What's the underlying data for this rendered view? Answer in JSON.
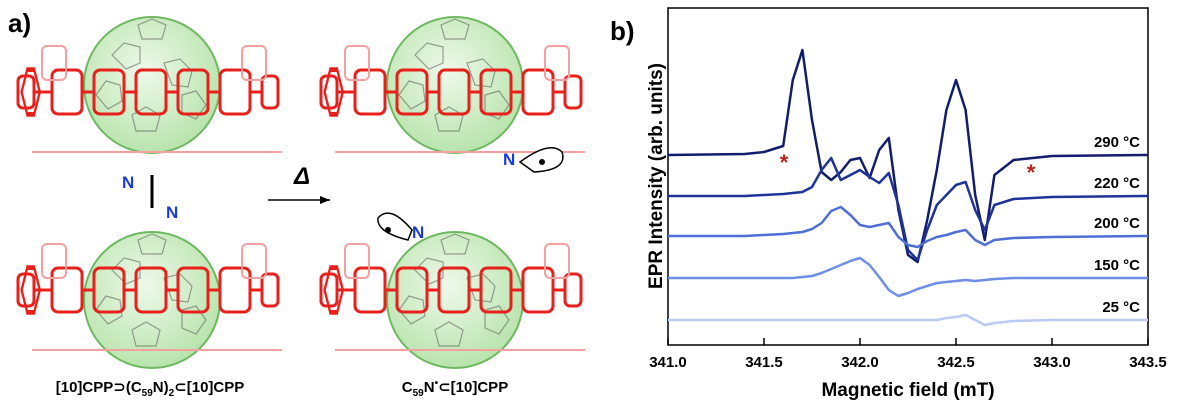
{
  "panel_a": {
    "label": "a)",
    "arrow_label": "Δ",
    "n_labels": [
      "N",
      "N",
      "N",
      "N"
    ],
    "left_caption": [
      "[10]CPP⊃(C",
      "59",
      "N)",
      "2",
      "⊂[10]CPP"
    ],
    "right_caption": [
      "C",
      "59",
      "N",
      "•",
      "⊂[10]CPP"
    ]
  },
  "chart_data": {
    "type": "line",
    "panel_label": "b)",
    "x_label": "Magnetic field (mT)",
    "y_label": "EPR Intensity (arb. units)",
    "x": [
      341.0,
      341.4,
      341.5,
      341.6,
      341.65,
      341.7,
      341.75,
      341.8,
      341.85,
      341.9,
      341.95,
      342.0,
      342.05,
      342.1,
      342.15,
      342.2,
      342.25,
      342.3,
      342.35,
      342.4,
      342.45,
      342.5,
      342.55,
      342.6,
      342.65,
      342.7,
      342.8,
      343.0,
      343.5
    ],
    "xlim": [
      341.0,
      343.5
    ],
    "xticks": [
      {
        "value": 341.0,
        "label": "341.0"
      },
      {
        "value": 341.5,
        "label": "341.5"
      },
      {
        "value": 342.0,
        "label": "342.0"
      },
      {
        "value": 342.5,
        "label": "342.5"
      },
      {
        "value": 343.0,
        "label": "343.0"
      },
      {
        "value": 343.5,
        "label": "343.5"
      }
    ],
    "ylim": [
      0,
      320
    ],
    "markers": [
      "*",
      "*"
    ],
    "series": [
      {
        "name": "290 °C",
        "color": "#121d6e",
        "values": [
          190,
          191,
          193,
          199,
          265,
          295,
          225,
          173,
          165,
          173,
          185,
          187,
          167,
          195,
          207,
          135,
          90,
          83,
          125,
          175,
          235,
          265,
          235,
          150,
          105,
          170,
          185,
          189,
          190
        ]
      },
      {
        "name": "220 °C",
        "color": "#1f3399",
        "values": [
          149,
          149,
          150,
          151,
          152,
          153,
          158,
          175,
          187,
          165,
          170,
          175,
          168,
          162,
          172,
          140,
          95,
          85,
          115,
          140,
          150,
          160,
          163,
          135,
          115,
          140,
          146,
          148,
          149
        ]
      },
      {
        "name": "200 °C",
        "color": "#4f6fd6",
        "values": [
          109,
          109,
          110,
          111,
          112,
          113,
          116,
          122,
          134,
          138,
          130,
          120,
          118,
          120,
          122,
          108,
          100,
          98,
          104,
          108,
          110,
          113,
          115,
          105,
          100,
          105,
          107,
          108,
          109
        ]
      },
      {
        "name": "150 °C",
        "color": "#6f8ee6",
        "values": [
          67,
          67,
          67,
          67,
          67,
          68,
          69,
          72,
          76,
          80,
          84,
          87,
          80,
          68,
          55,
          49,
          52,
          56,
          59,
          62,
          63,
          64,
          65,
          64,
          65,
          66,
          67,
          67,
          67
        ]
      },
      {
        "name": "25 °C",
        "color": "#bccbf4",
        "values": [
          25,
          25,
          25,
          25,
          25,
          25,
          25,
          25,
          25,
          25,
          25,
          25,
          25,
          25,
          25,
          25,
          25,
          25,
          25,
          25,
          27,
          28,
          30,
          25,
          20,
          22,
          24,
          25,
          25
        ]
      }
    ]
  }
}
